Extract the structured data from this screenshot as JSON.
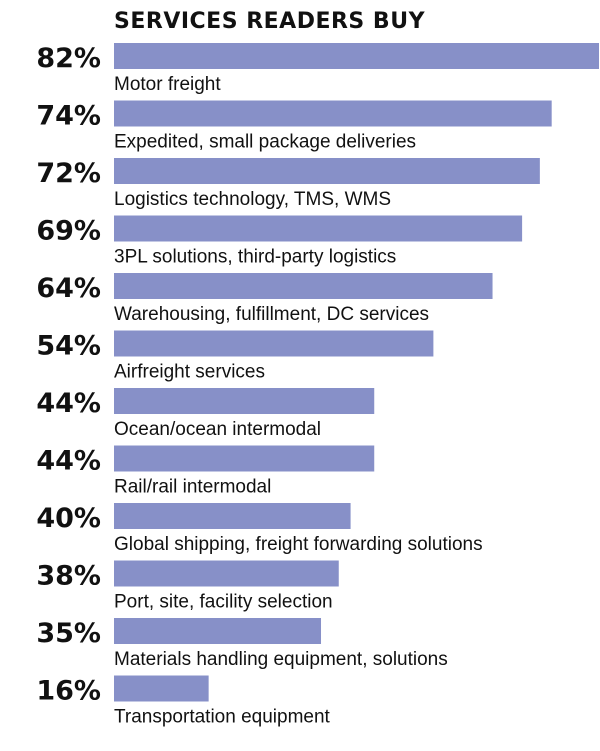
{
  "chart_data": {
    "type": "bar",
    "orientation": "horizontal",
    "title": "SERVICES READERS BUY",
    "xlim": [
      0,
      82
    ],
    "bar_color": "#8790c8",
    "categories": [
      "Motor freight",
      "Expedited, small package deliveries",
      "Logistics technology, TMS, WMS",
      "3PL solutions, third-party logistics",
      "Warehousing, fulfillment, DC services",
      "Airfreight services",
      "Ocean/ocean intermodal",
      "Rail/rail intermodal",
      "Global shipping, freight forwarding solutions",
      "Port, site, facility selection",
      "Materials handling equipment, solutions",
      "Transportation equipment"
    ],
    "values": [
      82,
      74,
      72,
      69,
      64,
      54,
      44,
      44,
      40,
      38,
      35,
      16
    ],
    "value_labels": [
      "82%",
      "74%",
      "72%",
      "69%",
      "64%",
      "54%",
      "44%",
      "44%",
      "40%",
      "38%",
      "35%",
      "16%"
    ]
  }
}
